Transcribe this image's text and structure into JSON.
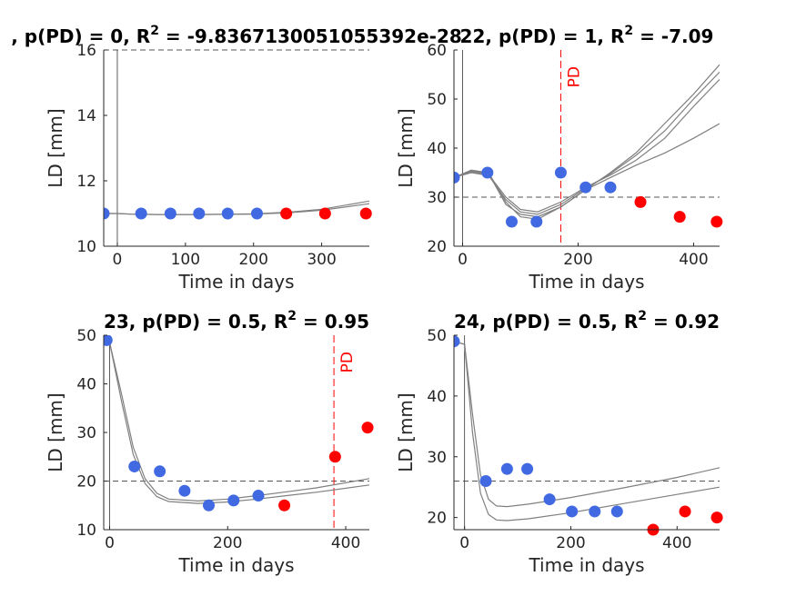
{
  "chart_data": [
    {
      "type": "scatter",
      "title": ", p(PD) = 0, R",
      "title_exp": "2",
      "title_tail": " = -9.8367130051055392e-28",
      "xlabel": "Time in days",
      "ylabel": "LD [mm]",
      "xlim": [
        -20,
        370
      ],
      "ylim": [
        10,
        16
      ],
      "xticks": [
        0,
        100,
        200,
        300
      ],
      "yticks": [
        10,
        12,
        14,
        16
      ],
      "threshold": 16,
      "baseline_x": 0,
      "pd_x": null,
      "pd_label": "",
      "observed": {
        "x": [
          -20,
          35,
          78,
          120,
          162,
          205
        ],
        "y": [
          11,
          11,
          11,
          11,
          11,
          11
        ]
      },
      "predicted": {
        "x": [
          248,
          305,
          365
        ],
        "y": [
          11,
          11,
          11
        ]
      },
      "fit_curves": [
        {
          "x": [
            -20,
            0,
            20,
            60,
            120,
            200,
            250,
            300,
            370
          ],
          "y": [
            11.0,
            11.0,
            10.98,
            10.97,
            10.97,
            10.98,
            11.02,
            11.1,
            11.3
          ]
        },
        {
          "x": [
            -20,
            0,
            20,
            60,
            120,
            200,
            250,
            300,
            370
          ],
          "y": [
            11.0,
            11.0,
            10.98,
            10.97,
            10.97,
            10.99,
            11.04,
            11.13,
            11.38
          ]
        }
      ]
    },
    {
      "type": "scatter",
      "title": "22, p(PD) = 1, R",
      "title_exp": "2",
      "title_tail": " = -7.09",
      "xlabel": "Time in days",
      "ylabel": "LD [mm]",
      "xlim": [
        -15,
        445
      ],
      "ylim": [
        20,
        60
      ],
      "xticks": [
        0,
        200,
        400
      ],
      "yticks": [
        20,
        30,
        40,
        50,
        60
      ],
      "threshold": 30,
      "baseline_x": 0,
      "pd_x": 170,
      "pd_label": "PD",
      "observed": {
        "x": [
          -15,
          43,
          85,
          128,
          170,
          213,
          256
        ],
        "y": [
          34,
          35,
          25,
          25,
          35,
          32,
          32
        ]
      },
      "predicted": {
        "x": [
          308,
          376,
          440
        ],
        "y": [
          29,
          26,
          25
        ]
      },
      "fit_curves": [
        {
          "x": [
            -15,
            15,
            45,
            75,
            100,
            130,
            170,
            213,
            256,
            300,
            350,
            400,
            445
          ],
          "y": [
            34,
            35.5,
            35,
            29,
            26,
            25.5,
            28,
            31.5,
            35,
            39,
            45,
            51,
            57
          ]
        },
        {
          "x": [
            -15,
            15,
            45,
            75,
            100,
            130,
            170,
            213,
            256,
            300,
            350,
            400,
            445
          ],
          "y": [
            34,
            35.2,
            34.6,
            30,
            27.5,
            27,
            29,
            32,
            34.5,
            37.5,
            42,
            48.5,
            54
          ]
        },
        {
          "x": [
            -15,
            15,
            45,
            75,
            100,
            130,
            170,
            213,
            256,
            300,
            350,
            400,
            445
          ],
          "y": [
            34,
            35,
            34.4,
            29.5,
            27,
            26.5,
            28.5,
            31.8,
            34.8,
            38.5,
            43.5,
            50,
            55.5
          ]
        },
        {
          "x": [
            -15,
            15,
            45,
            75,
            100,
            130,
            170,
            213,
            256,
            300,
            350,
            400,
            445
          ],
          "y": [
            34,
            35.4,
            34.8,
            28.5,
            26.5,
            26,
            28,
            31.5,
            34,
            36.5,
            39,
            42,
            45
          ]
        }
      ]
    },
    {
      "type": "scatter",
      "title": "23, p(PD) = 0.5, R",
      "title_exp": "2",
      "title_tail": " = 0.95",
      "xlabel": "Time in days",
      "ylabel": "LD [mm]",
      "xlim": [
        -10,
        440
      ],
      "ylim": [
        10,
        50
      ],
      "xticks": [
        0,
        200,
        400
      ],
      "yticks": [
        10,
        20,
        30,
        40,
        50
      ],
      "threshold": 20,
      "baseline_x": 0,
      "pd_x": 380,
      "pd_label": "PD",
      "observed": {
        "x": [
          -5,
          42,
          85,
          127,
          168,
          210,
          252
        ],
        "y": [
          49,
          23,
          22,
          18,
          15,
          16,
          17
        ]
      },
      "predicted": {
        "x": [
          296,
          382,
          437
        ],
        "y": [
          15,
          25,
          31
        ]
      },
      "fit_curves": [
        {
          "x": [
            -10,
            0,
            20,
            40,
            60,
            80,
            100,
            150,
            200,
            250,
            300,
            350,
            440
          ],
          "y": [
            49,
            48.5,
            38,
            27,
            20.5,
            17.5,
            16.3,
            15.9,
            16.3,
            17,
            17.8,
            18.6,
            20.5
          ]
        },
        {
          "x": [
            -10,
            0,
            20,
            40,
            60,
            80,
            100,
            150,
            200,
            250,
            300,
            350,
            440
          ],
          "y": [
            49,
            48.5,
            36.5,
            25.5,
            19.5,
            16.8,
            15.8,
            15.4,
            15.7,
            16.3,
            17,
            17.7,
            19.2
          ]
        }
      ]
    },
    {
      "type": "scatter",
      "title": "24, p(PD) = 0.5, R",
      "title_exp": "2",
      "title_tail": " = 0.92",
      "xlabel": "Time in days",
      "ylabel": "LD [mm]",
      "xlim": [
        -20,
        480
      ],
      "ylim": [
        18,
        50
      ],
      "xticks": [
        0,
        200,
        400
      ],
      "yticks": [
        20,
        30,
        40,
        50
      ],
      "threshold": 26,
      "baseline_x": 0,
      "pd_x": null,
      "pd_label": "",
      "observed": {
        "x": [
          -20,
          40,
          80,
          118,
          160,
          202,
          245,
          287
        ],
        "y": [
          49,
          26,
          28,
          28,
          23,
          21,
          21,
          21
        ]
      },
      "predicted": {
        "x": [
          355,
          415,
          475
        ],
        "y": [
          18,
          21,
          20
        ]
      },
      "fit_curves": [
        {
          "x": [
            -20,
            0,
            15,
            30,
            45,
            60,
            80,
            120,
            200,
            300,
            400,
            480
          ],
          "y": [
            49,
            48.5,
            37,
            27,
            23,
            21.9,
            21.8,
            22.2,
            23.3,
            24.9,
            26.6,
            28.2
          ]
        },
        {
          "x": [
            -20,
            0,
            15,
            30,
            45,
            60,
            80,
            120,
            200,
            300,
            400,
            480
          ],
          "y": [
            49,
            48.5,
            34,
            24,
            20.5,
            19.6,
            19.5,
            19.8,
            20.8,
            22.3,
            23.8,
            25
          ]
        }
      ]
    }
  ]
}
